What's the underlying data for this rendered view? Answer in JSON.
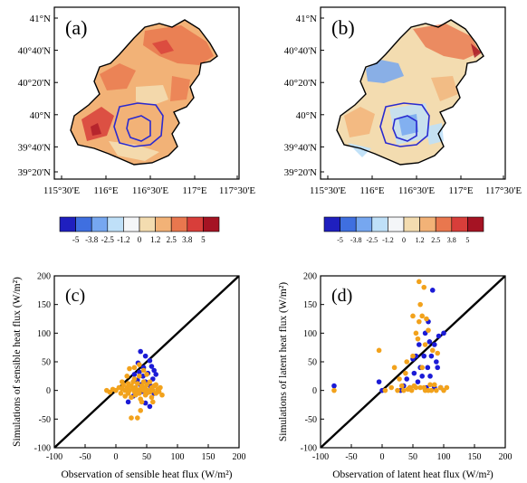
{
  "figure": {
    "panels": {
      "a": {
        "label": "(a)"
      },
      "b": {
        "label": "(b)"
      },
      "c": {
        "label": "(c)"
      },
      "d": {
        "label": "(d)"
      }
    },
    "map_lat_ticks": [
      "41°N",
      "40°40'N",
      "40°20'N",
      "40°N",
      "39°40'N",
      "39°20'N"
    ],
    "map_lon_ticks": [
      "115°30'E",
      "116°E",
      "116°30'E",
      "117°E",
      "117°30'E"
    ],
    "colorbar": {
      "labels": [
        "-5",
        "-3.8",
        "-2.5",
        "-1.2",
        "0",
        "1.2",
        "2.5",
        "3.8",
        "5"
      ],
      "colors": [
        "#1f1fbf",
        "#3f6fe0",
        "#76a7f0",
        "#bfe0f8",
        "#f4f6f8",
        "#f3dcb0",
        "#f2b277",
        "#e9774e",
        "#d83e3a",
        "#a51323"
      ]
    },
    "colors": {
      "series_blue": "#1b1bd6",
      "series_orange": "#f2a21c",
      "boundary": "#000000",
      "urban_contour": "#2a2ad0"
    }
  },
  "chart_data": [
    {
      "panel": "(c)",
      "type": "scatter",
      "xlabel": "Observation of sensible heat flux (W/m²)",
      "ylabel": "Simulations of sensible heat flux (W/m²)",
      "xlim": [
        -100,
        200
      ],
      "ylim": [
        -100,
        200
      ],
      "x_ticks": [
        "-100",
        "-50",
        "0",
        "50",
        "100",
        "150",
        "200"
      ],
      "y_ticks": [
        "-100",
        "-50",
        "0",
        "50",
        "100",
        "150",
        "200"
      ],
      "reference_line": "1:1",
      "series": [
        {
          "color": "blue",
          "points": [
            [
              40,
              68
            ],
            [
              48,
              60
            ],
            [
              55,
              52
            ],
            [
              36,
              48
            ],
            [
              58,
              42
            ],
            [
              45,
              40
            ],
            [
              62,
              35
            ],
            [
              38,
              32
            ],
            [
              52,
              30
            ],
            [
              65,
              28
            ],
            [
              30,
              28
            ],
            [
              44,
              25
            ],
            [
              60,
              20
            ],
            [
              35,
              18
            ],
            [
              48,
              15
            ],
            [
              40,
              10
            ],
            [
              56,
              8
            ],
            [
              32,
              5
            ],
            [
              50,
              0
            ],
            [
              42,
              -2
            ],
            [
              62,
              -5
            ],
            [
              28,
              -10
            ],
            [
              20,
              -20
            ],
            [
              48,
              -22
            ],
            [
              55,
              -28
            ]
          ]
        },
        {
          "color": "orange",
          "points": [
            [
              -15,
              0
            ],
            [
              -10,
              -3
            ],
            [
              -5,
              2
            ],
            [
              0,
              0
            ],
            [
              5,
              5
            ],
            [
              8,
              -5
            ],
            [
              10,
              3
            ],
            [
              12,
              10
            ],
            [
              15,
              0
            ],
            [
              15,
              -10
            ],
            [
              18,
              5
            ],
            [
              20,
              12
            ],
            [
              20,
              -5
            ],
            [
              22,
              0
            ],
            [
              25,
              8
            ],
            [
              25,
              -12
            ],
            [
              28,
              3
            ],
            [
              28,
              15
            ],
            [
              30,
              -2
            ],
            [
              30,
              20
            ],
            [
              32,
              5
            ],
            [
              32,
              -8
            ],
            [
              35,
              0
            ],
            [
              35,
              12
            ],
            [
              38,
              -5
            ],
            [
              38,
              25
            ],
            [
              40,
              2
            ],
            [
              40,
              -15
            ],
            [
              42,
              8
            ],
            [
              42,
              -20
            ],
            [
              45,
              0
            ],
            [
              45,
              15
            ],
            [
              48,
              -8
            ],
            [
              48,
              5
            ],
            [
              50,
              10
            ],
            [
              50,
              -5
            ],
            [
              52,
              0
            ],
            [
              55,
              15
            ],
            [
              55,
              -3
            ],
            [
              58,
              5
            ],
            [
              58,
              -12
            ],
            [
              60,
              0
            ],
            [
              62,
              8
            ],
            [
              65,
              -5
            ],
            [
              65,
              10
            ],
            [
              68,
              2
            ],
            [
              70,
              -2
            ],
            [
              72,
              5
            ],
            [
              75,
              -8
            ],
            [
              30,
              40
            ],
            [
              38,
              45
            ],
            [
              45,
              35
            ],
            [
              25,
              -48
            ],
            [
              35,
              -48
            ],
            [
              60,
              -20
            ],
            [
              40,
              -35
            ],
            [
              18,
              25
            ],
            [
              10,
              15
            ],
            [
              22,
              38
            ],
            [
              50,
              28
            ]
          ]
        }
      ]
    },
    {
      "panel": "(d)",
      "type": "scatter",
      "xlabel": "Observation of latent heat flux (W/m²)",
      "ylabel": "Simulations of latent heat flux (W/m²)",
      "xlim": [
        -100,
        200
      ],
      "ylim": [
        -100,
        200
      ],
      "x_ticks": [
        "-100",
        "-50",
        "0",
        "50",
        "100",
        "150",
        "200"
      ],
      "y_ticks": [
        "-100",
        "-50",
        "0",
        "50",
        "100",
        "150",
        "200"
      ],
      "reference_line": "1:1",
      "series": [
        {
          "color": "blue",
          "points": [
            [
              -78,
              8
            ],
            [
              -5,
              15
            ],
            [
              0,
              0
            ],
            [
              30,
              0
            ],
            [
              35,
              8
            ],
            [
              40,
              20
            ],
            [
              45,
              5
            ],
            [
              50,
              55
            ],
            [
              52,
              30
            ],
            [
              55,
              60
            ],
            [
              58,
              15
            ],
            [
              60,
              80
            ],
            [
              62,
              40
            ],
            [
              65,
              25
            ],
            [
              68,
              60
            ],
            [
              70,
              100
            ],
            [
              72,
              5
            ],
            [
              74,
              40
            ],
            [
              75,
              120
            ],
            [
              77,
              85
            ],
            [
              78,
              25
            ],
            [
              80,
              60
            ],
            [
              82,
              175
            ],
            [
              85,
              80
            ],
            [
              85,
              5
            ],
            [
              88,
              50
            ],
            [
              90,
              40
            ],
            [
              92,
              95
            ],
            [
              95,
              5
            ],
            [
              100,
              100
            ]
          ]
        },
        {
          "color": "orange",
          "points": [
            [
              -78,
              0
            ],
            [
              -5,
              70
            ],
            [
              5,
              0
            ],
            [
              15,
              5
            ],
            [
              20,
              40
            ],
            [
              25,
              0
            ],
            [
              28,
              20
            ],
            [
              32,
              8
            ],
            [
              35,
              0
            ],
            [
              38,
              30
            ],
            [
              40,
              50
            ],
            [
              42,
              2
            ],
            [
              45,
              5
            ],
            [
              48,
              0
            ],
            [
              50,
              60
            ],
            [
              50,
              130
            ],
            [
              52,
              8
            ],
            [
              55,
              5
            ],
            [
              55,
              100
            ],
            [
              58,
              90
            ],
            [
              60,
              120
            ],
            [
              60,
              190
            ],
            [
              62,
              5
            ],
            [
              62,
              150
            ],
            [
              65,
              130
            ],
            [
              65,
              40
            ],
            [
              68,
              5
            ],
            [
              68,
              180
            ],
            [
              70,
              0
            ],
            [
              70,
              80
            ],
            [
              72,
              125
            ],
            [
              75,
              105
            ],
            [
              75,
              0
            ],
            [
              78,
              10
            ],
            [
              80,
              0
            ],
            [
              82,
              70
            ],
            [
              85,
              10
            ],
            [
              88,
              0
            ],
            [
              90,
              65
            ],
            [
              95,
              5
            ],
            [
              100,
              0
            ],
            [
              105,
              5
            ]
          ]
        }
      ]
    }
  ]
}
